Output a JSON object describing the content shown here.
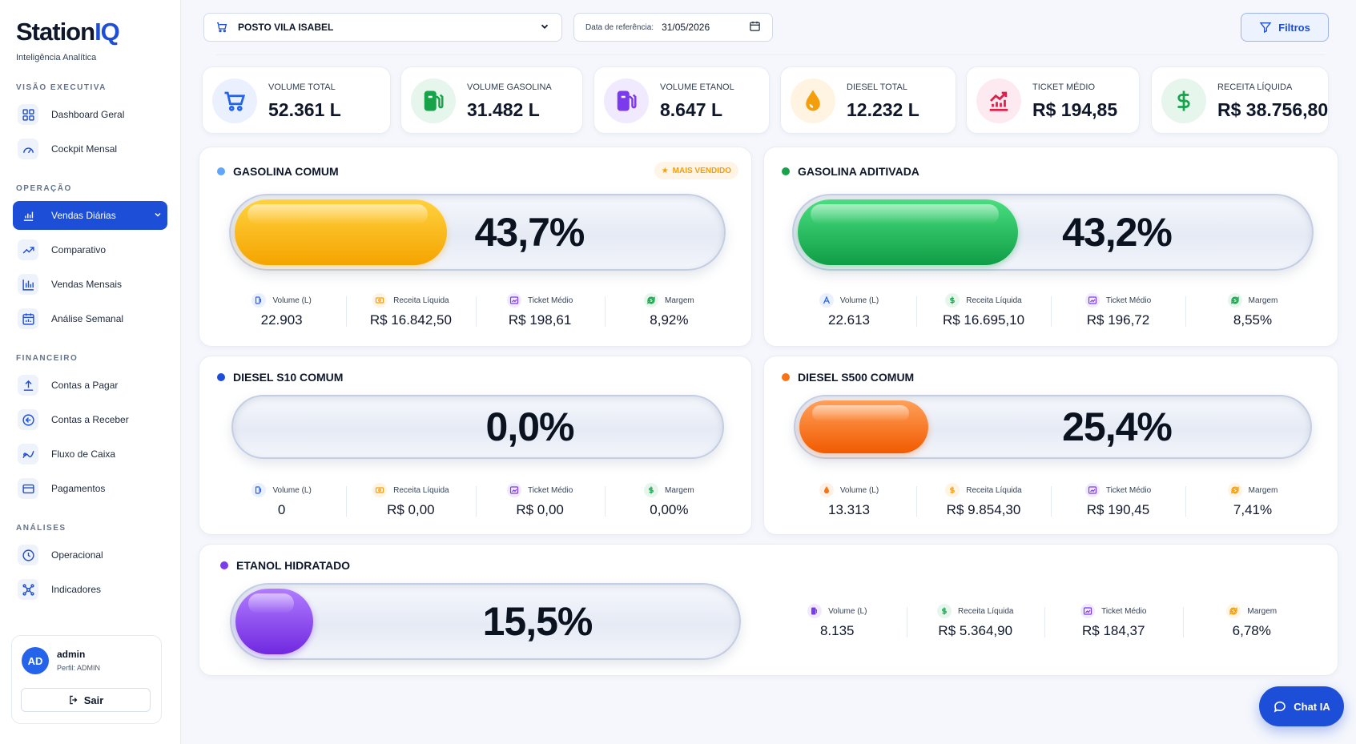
{
  "brand": {
    "name_main": "Station",
    "name_accent": "IQ",
    "subtitle": "Inteligência Analítica"
  },
  "sidebar": {
    "sections": [
      {
        "title": "VISÃO EXECUTIVA",
        "items": [
          {
            "label": "Dashboard Geral",
            "icon": "grid-icon"
          },
          {
            "label": "Cockpit Mensal",
            "icon": "gauge-icon"
          }
        ]
      },
      {
        "title": "OPERAÇÃO",
        "items": [
          {
            "label": "Vendas Diárias",
            "icon": "bar-chart-icon",
            "active": true
          },
          {
            "label": "Comparativo",
            "icon": "trend-icon"
          },
          {
            "label": "Vendas Mensais",
            "icon": "column-chart-icon"
          },
          {
            "label": "Análise Semanal",
            "icon": "calendar-chart-icon"
          }
        ]
      },
      {
        "title": "FINANCEIRO",
        "items": [
          {
            "label": "Contas a Pagar",
            "icon": "upload-icon"
          },
          {
            "label": "Contas a Receber",
            "icon": "receive-icon"
          },
          {
            "label": "Fluxo de Caixa",
            "icon": "flow-icon"
          },
          {
            "label": "Pagamentos",
            "icon": "card-icon"
          }
        ]
      },
      {
        "title": "ANÁLISES",
        "items": [
          {
            "label": "Operacional",
            "icon": "clock-icon"
          },
          {
            "label": "Indicadores",
            "icon": "network-icon"
          }
        ]
      }
    ]
  },
  "user": {
    "initials": "AD",
    "name": "admin",
    "role": "Perfil: ADMIN",
    "logout_label": "Sair"
  },
  "topbar": {
    "station": "POSTO VILA ISABEL",
    "date_label": "Data de referência:",
    "date_value": "31/05/2026",
    "filters_label": "Filtros"
  },
  "kpis": [
    {
      "label": "VOLUME TOTAL",
      "value": "52.361 L",
      "icon": "cart-icon",
      "color": "#2563eb",
      "bg": "#eaf0fe"
    },
    {
      "label": "VOLUME GASOLINA",
      "value": "31.482 L",
      "icon": "fuel-pump-icon",
      "color": "#16a34a",
      "bg": "#e6f6ec"
    },
    {
      "label": "VOLUME ETANOL",
      "value": "8.647 L",
      "icon": "fuel-pump-icon",
      "color": "#7c3aed",
      "bg": "#f1eafe"
    },
    {
      "label": "DIESEL TOTAL",
      "value": "12.232 L",
      "icon": "droplet-icon",
      "color": "#f59e0b",
      "bg": "#fff4e2"
    },
    {
      "label": "TICKET MÉDIO",
      "value": "R$ 194,85",
      "icon": "chart-up-icon",
      "color": "#e11d48",
      "bg": "#fdeaf0"
    },
    {
      "label": "RECEITA LÍQUIDA",
      "value": "R$ 38.756,80",
      "icon": "dollar-icon",
      "color": "#16a34a",
      "bg": "#e6f6ec"
    }
  ],
  "stat_labels": {
    "volume": "Volume (L)",
    "receita": "Receita Líquida",
    "ticket": "Ticket Médio",
    "margem": "Margem"
  },
  "products": [
    {
      "name": "GASOLINA COMUM",
      "dot": "#60a5fa",
      "badge": "MAIS VENDIDO",
      "percent_text": "43,7%",
      "fill_fraction": 0.437,
      "fill_from": "#ffd23f",
      "fill_to": "#f5a400",
      "volume": "22.903",
      "receita": "R$ 16.842,50",
      "ticket": "R$ 198,61",
      "margem": "8,92%"
    },
    {
      "name": "GASOLINA ADITIVADA",
      "dot": "#16a34a",
      "percent_text": "43,2%",
      "fill_fraction": 0.432,
      "fill_from": "#4ade80",
      "fill_to": "#0f9d45",
      "volume": "22.613",
      "receita": "R$ 16.695,10",
      "ticket": "R$ 196,72",
      "margem": "8,55%"
    },
    {
      "name": "DIESEL S10 COMUM",
      "dot": "#1d4ed8",
      "percent_text": "0,0%",
      "fill_fraction": 0.0,
      "fill_from": "#60a5fa",
      "fill_to": "#1d4ed8",
      "volume": "0",
      "receita": "R$ 0,00",
      "ticket": "R$ 0,00",
      "margem": "0,00%"
    },
    {
      "name": "DIESEL S500 COMUM",
      "dot": "#f97316",
      "percent_text": "25,4%",
      "fill_fraction": 0.254,
      "fill_from": "#ffa05a",
      "fill_to": "#f15a00",
      "volume": "13.313",
      "receita": "R$ 9.854,30",
      "ticket": "R$ 190,45",
      "margem": "7,41%"
    },
    {
      "name": "ETANOL HIDRATADO",
      "dot": "#7c3aed",
      "percent_text": "15,5%",
      "fill_fraction": 0.155,
      "fill_from": "#b07cff",
      "fill_to": "#7028e0",
      "volume": "8.135",
      "receita": "R$ 5.364,90",
      "ticket": "R$ 184,37",
      "margem": "6,78%"
    }
  ],
  "chat": {
    "label": "Chat IA"
  }
}
